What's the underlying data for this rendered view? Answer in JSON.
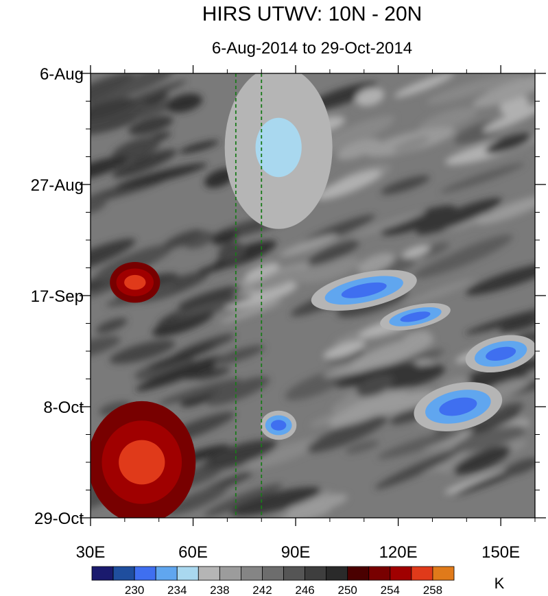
{
  "chart_data": {
    "type": "heatmap",
    "title": "HIRS UTWV: 10N - 20N",
    "subtitle": "6-Aug-2014 to 29-Oct-2014",
    "x_axis": {
      "ticks": [
        "30E",
        "60E",
        "90E",
        "120E",
        "150E"
      ],
      "tick_values": [
        30,
        60,
        90,
        120,
        150
      ],
      "range": [
        30,
        160
      ]
    },
    "y_axis": {
      "ticks": [
        "6-Aug",
        "27-Aug",
        "17-Sep",
        "8-Oct",
        "29-Oct"
      ],
      "range": [
        "2014-08-06",
        "2014-10-29"
      ],
      "direction": "time increases downward"
    },
    "reference_lines": [
      {
        "lon": 72.5,
        "style": "dashed",
        "color": "#1a7a1a"
      },
      {
        "lon": 80,
        "style": "dashed",
        "color": "#1a7a1a"
      }
    ],
    "colorbar": {
      "unit": "K",
      "labels": [
        "230",
        "234",
        "238",
        "242",
        "246",
        "250",
        "254",
        "258"
      ],
      "colors": [
        "#1a1a6e",
        "#1f4e9e",
        "#3f6ff0",
        "#60a6ef",
        "#a9d8ef",
        "#b5b5b5",
        "#9c9c9c",
        "#858585",
        "#6d6d6d",
        "#555555",
        "#3e3e3e",
        "#2a2a2a",
        "#4a0000",
        "#780000",
        "#a00000",
        "#e03a1a",
        "#e07a1a"
      ]
    },
    "features": [
      {
        "description": "moist (cold) band",
        "lon": [
          70,
          100
        ],
        "date": [
          "2014-08-06",
          "2014-09-03"
        ],
        "approx_k": 234
      },
      {
        "description": "moist streak",
        "lon": [
          95,
          125
        ],
        "date": [
          "2014-09-13",
          "2014-09-19"
        ],
        "approx_k": 230
      },
      {
        "description": "moist streak",
        "lon": [
          115,
          135
        ],
        "date": [
          "2014-09-19",
          "2014-09-23"
        ],
        "approx_k": 230
      },
      {
        "description": "moist streak",
        "lon": [
          140,
          160
        ],
        "date": [
          "2014-09-25",
          "2014-10-01"
        ],
        "approx_k": 230
      },
      {
        "description": "moist streak",
        "lon": [
          125,
          150
        ],
        "date": [
          "2014-10-04",
          "2014-10-12"
        ],
        "approx_k": 230
      },
      {
        "description": "moist patch",
        "lon": [
          80,
          90
        ],
        "date": [
          "2014-10-09",
          "2014-10-14"
        ],
        "approx_k": 230
      },
      {
        "description": "dry (warm) patch",
        "lon": [
          36,
          50
        ],
        "date": [
          "2014-09-11",
          "2014-09-18"
        ],
        "approx_k": 256
      },
      {
        "description": "dry (warm) region",
        "lon": [
          30,
          60
        ],
        "date": [
          "2014-10-08",
          "2014-10-29"
        ],
        "approx_k": 256
      }
    ]
  }
}
